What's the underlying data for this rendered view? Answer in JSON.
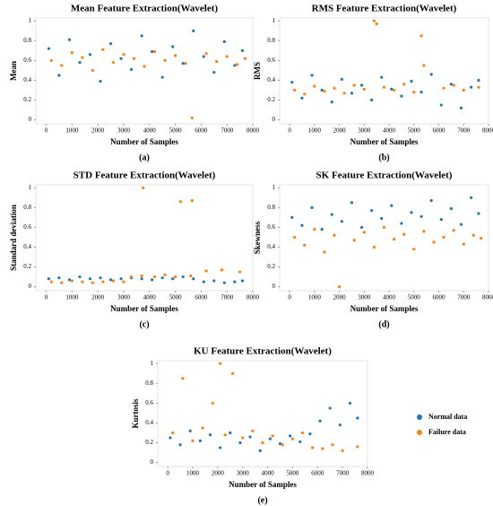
{
  "chart_data": [
    {
      "type": "scatter",
      "title": "Mean Feature Extraction(Wavelet)",
      "x_label": "Number of Samples",
      "y_label": "Mean",
      "label": "(a)",
      "xlim": [
        -400,
        8000
      ],
      "xticks": [
        0,
        1000,
        2000,
        3000,
        4000,
        5000,
        6000,
        7000,
        8000
      ],
      "ylim": [
        -0.04,
        1.03
      ],
      "yticks": [
        0,
        0.2,
        0.4,
        0.6,
        0.8,
        1
      ],
      "series": [
        {
          "color": "#1f77b4",
          "x": [
            100,
            500,
            900,
            1300,
            1700,
            2100,
            2500,
            2900,
            3300,
            3700,
            4100,
            4500,
            4900,
            5300,
            5700,
            6100,
            6500,
            6900,
            7300,
            7600
          ],
          "y": [
            0.72,
            0.45,
            0.81,
            0.58,
            0.66,
            0.39,
            0.77,
            0.62,
            0.51,
            0.85,
            0.69,
            0.43,
            0.74,
            0.57,
            0.9,
            0.64,
            0.48,
            0.79,
            0.55,
            0.7
          ]
        },
        {
          "color": "#ff7f0e",
          "x": [
            200,
            600,
            1000,
            1400,
            1800,
            2200,
            2600,
            3000,
            3400,
            3800,
            4200,
            4600,
            5000,
            5400,
            5650,
            6200,
            6600,
            7000,
            7400,
            7700
          ],
          "y": [
            0.6,
            0.55,
            0.68,
            0.63,
            0.5,
            0.71,
            0.58,
            0.66,
            0.62,
            0.54,
            0.69,
            0.6,
            0.65,
            0.57,
            0.02,
            0.67,
            0.59,
            0.64,
            0.56,
            0.62
          ]
        }
      ]
    },
    {
      "type": "scatter",
      "title": "RMS Feature Extraction(Wavelet)",
      "x_label": "Number of Samples",
      "y_label": "RMS",
      "label": "(b)",
      "xlim": [
        -400,
        8000
      ],
      "xticks": [
        0,
        1000,
        2000,
        3000,
        4000,
        5000,
        6000,
        7000,
        8000
      ],
      "ylim": [
        -0.04,
        1.03
      ],
      "yticks": [
        0,
        0.2,
        0.4,
        0.6,
        0.8,
        1
      ],
      "series": [
        {
          "color": "#1f77b4",
          "x": [
            100,
            500,
            900,
            1300,
            1700,
            2100,
            2500,
            2900,
            3300,
            3700,
            4100,
            4500,
            4900,
            5300,
            5700,
            6100,
            6500,
            6900,
            7300,
            7600
          ],
          "y": [
            0.38,
            0.22,
            0.45,
            0.3,
            0.18,
            0.41,
            0.27,
            0.35,
            0.2,
            0.43,
            0.31,
            0.24,
            0.39,
            0.28,
            0.46,
            0.15,
            0.36,
            0.12,
            0.33,
            0.4
          ]
        },
        {
          "color": "#ff7f0e",
          "x": [
            200,
            600,
            1000,
            1400,
            1800,
            2200,
            2600,
            3000,
            3400,
            3500,
            3800,
            4200,
            4600,
            5000,
            5300,
            5400,
            6200,
            6600,
            7000,
            7600
          ],
          "y": [
            0.3,
            0.26,
            0.34,
            0.29,
            0.32,
            0.27,
            0.35,
            0.31,
            1.0,
            0.97,
            0.33,
            0.3,
            0.36,
            0.28,
            0.85,
            0.55,
            0.32,
            0.35,
            0.3,
            0.33
          ]
        }
      ]
    },
    {
      "type": "scatter",
      "title": "STD Feature Extraction(Wavelet)",
      "x_label": "Number of Samples",
      "y_label": "Standard deviation",
      "label": "(c)",
      "xlim": [
        -400,
        8000
      ],
      "xticks": [
        0,
        1000,
        2000,
        3000,
        4000,
        5000,
        6000,
        7000,
        8000
      ],
      "ylim": [
        -0.04,
        1.03
      ],
      "yticks": [
        0,
        0.2,
        0.4,
        0.6,
        0.8,
        1
      ],
      "series": [
        {
          "color": "#1f77b4",
          "x": [
            100,
            500,
            900,
            1300,
            1700,
            2100,
            2500,
            2900,
            3300,
            3700,
            4100,
            4500,
            4900,
            5300,
            5700,
            6100,
            6500,
            6900,
            7300,
            7600
          ],
          "y": [
            0.08,
            0.09,
            0.07,
            0.1,
            0.08,
            0.09,
            0.07,
            0.08,
            0.09,
            0.08,
            0.07,
            0.09,
            0.08,
            0.1,
            0.08,
            0.05,
            0.06,
            0.04,
            0.05,
            0.06
          ]
        },
        {
          "color": "#ff7f0e",
          "x": [
            200,
            600,
            1000,
            1400,
            1800,
            2200,
            2600,
            3000,
            3300,
            3700,
            3750,
            4200,
            4600,
            5000,
            5200,
            5600,
            5650,
            6200,
            6800,
            7500
          ],
          "y": [
            0.05,
            0.04,
            0.06,
            0.05,
            0.04,
            0.05,
            0.06,
            0.05,
            0.1,
            0.11,
            1.0,
            0.1,
            0.12,
            0.1,
            0.86,
            0.11,
            0.87,
            0.16,
            0.17,
            0.15
          ]
        }
      ]
    },
    {
      "type": "scatter",
      "title": "SK Feature Extraction(Wavelet)",
      "x_label": "Number of Samples",
      "y_label": "Skewness",
      "label": "(d)",
      "xlim": [
        -400,
        8000
      ],
      "xticks": [
        0,
        1000,
        2000,
        3000,
        4000,
        5000,
        6000,
        7000,
        8000
      ],
      "ylim": [
        -0.04,
        1.03
      ],
      "yticks": [
        0,
        0.2,
        0.4,
        0.6,
        0.8,
        1
      ],
      "series": [
        {
          "color": "#1f77b4",
          "x": [
            100,
            500,
            900,
            1300,
            1700,
            2100,
            2500,
            2900,
            3300,
            3700,
            4100,
            4500,
            4900,
            5300,
            5700,
            6100,
            6500,
            6900,
            7300,
            7600
          ],
          "y": [
            0.7,
            0.62,
            0.8,
            0.58,
            0.73,
            0.66,
            0.85,
            0.6,
            0.77,
            0.69,
            0.82,
            0.64,
            0.75,
            0.71,
            0.87,
            0.68,
            0.79,
            0.63,
            0.9,
            0.74
          ]
        },
        {
          "color": "#ff7f0e",
          "x": [
            200,
            600,
            1000,
            1400,
            1800,
            2000,
            2600,
            3000,
            3400,
            3800,
            4200,
            4600,
            5000,
            5400,
            5800,
            6200,
            6600,
            7000,
            7400,
            7700
          ],
          "y": [
            0.5,
            0.42,
            0.58,
            0.35,
            0.52,
            0.0,
            0.47,
            0.55,
            0.4,
            0.6,
            0.48,
            0.53,
            0.38,
            0.56,
            0.45,
            0.5,
            0.57,
            0.43,
            0.52,
            0.49
          ]
        }
      ]
    },
    {
      "type": "scatter",
      "title": "KU Feature Extraction(Wavelet)",
      "x_label": "Number of Samples",
      "y_label": "Kurtosis",
      "label": "(e)",
      "legend": "right",
      "xlim": [
        -400,
        8000
      ],
      "xticks": [
        0,
        1000,
        2000,
        3000,
        4000,
        5000,
        6000,
        7000,
        8000
      ],
      "ylim": [
        -0.04,
        1.03
      ],
      "yticks": [
        0,
        0.2,
        0.4,
        0.6,
        0.8,
        1
      ],
      "series": [
        {
          "name": "Normal data",
          "color": "#1f77b4",
          "x": [
            100,
            500,
            900,
            1300,
            1700,
            2100,
            2500,
            2900,
            3300,
            3700,
            4100,
            4500,
            4900,
            5300,
            5700,
            6100,
            6500,
            6900,
            7300,
            7600
          ],
          "y": [
            0.25,
            0.18,
            0.32,
            0.22,
            0.28,
            0.15,
            0.3,
            0.2,
            0.26,
            0.12,
            0.24,
            0.19,
            0.27,
            0.21,
            0.29,
            0.42,
            0.55,
            0.38,
            0.6,
            0.45
          ]
        },
        {
          "name": "Failure data",
          "color": "#ff7f0e",
          "x": [
            200,
            600,
            1000,
            1400,
            1800,
            2100,
            2300,
            2600,
            3000,
            3400,
            3800,
            4200,
            4600,
            5000,
            5400,
            5800,
            6200,
            6600,
            7000,
            7600
          ],
          "y": [
            0.3,
            0.85,
            0.22,
            0.35,
            0.6,
            1.0,
            0.28,
            0.9,
            0.25,
            0.32,
            0.2,
            0.27,
            0.18,
            0.24,
            0.3,
            0.15,
            0.14,
            0.18,
            0.12,
            0.16
          ]
        }
      ]
    }
  ]
}
